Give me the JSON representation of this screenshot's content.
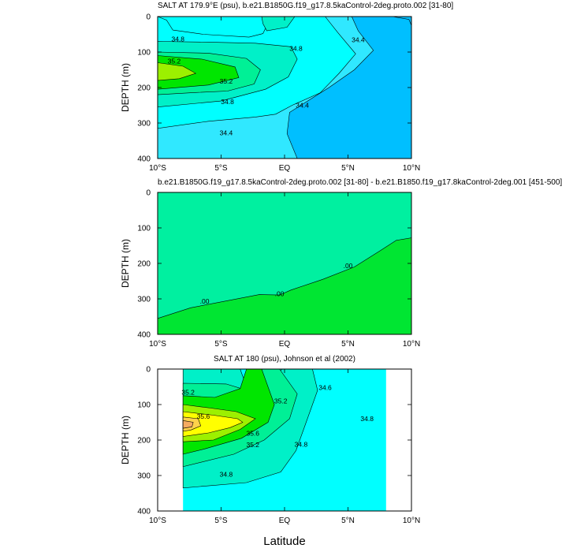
{
  "colors": {
    "c34_2": "#00bfff",
    "c34_4": "#30e8ff",
    "c34_6": "#00ffff",
    "c34_8": "#00f0c8",
    "c35_0": "#00f096",
    "c35_2": "#00e600",
    "c35_4": "#9cf000",
    "c35_6": "#ffff00",
    "c35_8": "#ffd24b",
    "c36_0": "#f5ab62",
    "diff_zero": "#00f0a0",
    "diff_pos": "#00e632",
    "bg": "#ffffff"
  },
  "xlabel": "Latitude",
  "chart_data": [
    {
      "type": "contour",
      "title": "SALT AT 179.9°E (psu), b.e21.B1850G.f19_g17.8.5kaControl-2deg.proto.002 [31-80]",
      "ylabel": "DEPTH (m)",
      "xlim": [
        -10,
        10
      ],
      "ylim": [
        400,
        0
      ],
      "xticks": [
        "10°S",
        "5°S",
        "EQ",
        "5°N",
        "10°N"
      ],
      "yticks": [
        "0",
        "100",
        "200",
        "300",
        "400"
      ],
      "contour_labels": [
        {
          "text": "34.8",
          "lat": -8.4,
          "depth": 63
        },
        {
          "text": "35.2",
          "lat": -8.7,
          "depth": 125
        },
        {
          "text": "35.2",
          "lat": -4.6,
          "depth": 182
        },
        {
          "text": "34.8",
          "lat": -4.5,
          "depth": 240
        },
        {
          "text": "34.4",
          "lat": -4.6,
          "depth": 328
        },
        {
          "text": "34.8",
          "lat": 0.9,
          "depth": 90
        },
        {
          "text": "34.4",
          "lat": 5.8,
          "depth": 65
        },
        {
          "text": "34.4",
          "lat": 1.4,
          "depth": 250
        }
      ]
    },
    {
      "type": "contour",
      "title": "b.e21.B1850G.f19_g17.8.5kaControl-2deg.proto.002 [31-80] - b.e21.B1850.f19_g17.8kaControl-2deg.001 [451-500]",
      "ylabel": "DEPTH (m)",
      "xlim": [
        -10,
        10
      ],
      "ylim": [
        400,
        0
      ],
      "xticks": [
        "10°S",
        "5°S",
        "EQ",
        "5°N",
        "10°N"
      ],
      "yticks": [
        "0",
        "100",
        "200",
        "300",
        "400"
      ],
      "contour_labels": [
        {
          "text": ".00",
          "lat": -6.3,
          "depth": 307
        },
        {
          "text": ".00",
          "lat": -0.4,
          "depth": 285
        },
        {
          "text": ".00",
          "lat": 5.0,
          "depth": 207
        }
      ]
    },
    {
      "type": "contour",
      "title": "SALT AT 180 (psu), Johnson et al (2002)",
      "ylabel": "DEPTH (m)",
      "xlim": [
        -10,
        10
      ],
      "ylim": [
        400,
        0
      ],
      "xticks": [
        "10°S",
        "5°S",
        "EQ",
        "5°N",
        "10°N"
      ],
      "yticks": [
        "0",
        "100",
        "200",
        "300",
        "400"
      ],
      "data_lat_range": [
        -8,
        8
      ],
      "contour_labels": [
        {
          "text": "35.2",
          "lat": -7.6,
          "depth": 65
        },
        {
          "text": "35.6",
          "lat": -6.4,
          "depth": 133
        },
        {
          "text": "35.6",
          "lat": -2.5,
          "depth": 181
        },
        {
          "text": "35.2",
          "lat": -2.5,
          "depth": 213
        },
        {
          "text": "35.2",
          "lat": -0.3,
          "depth": 90
        },
        {
          "text": "34.8",
          "lat": -4.6,
          "depth": 297
        },
        {
          "text": "34.8",
          "lat": 1.3,
          "depth": 212
        },
        {
          "text": "34.6",
          "lat": 3.2,
          "depth": 52
        },
        {
          "text": "34.8",
          "lat": 6.5,
          "depth": 140
        }
      ]
    }
  ]
}
